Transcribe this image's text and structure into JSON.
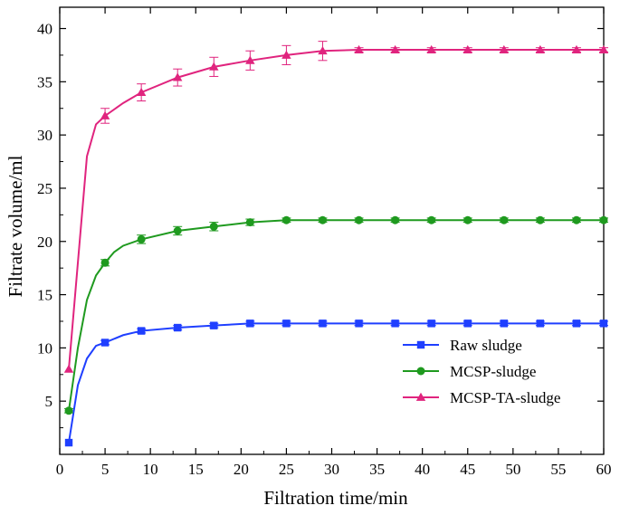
{
  "chart_data": {
    "type": "line",
    "title": "",
    "xlabel": "Filtration time/min",
    "ylabel": "Filtrate volume/ml",
    "xlim": [
      0,
      60
    ],
    "ylim": [
      0,
      42
    ],
    "xticks": [
      0,
      5,
      10,
      15,
      20,
      25,
      30,
      35,
      40,
      45,
      50,
      55,
      60
    ],
    "yticks": [
      5,
      10,
      15,
      20,
      25,
      30,
      35,
      40
    ],
    "grid": false,
    "legend_position": "bottom-right",
    "series": [
      {
        "name": "Raw sludge",
        "color": "#1f3fff",
        "marker": "square",
        "line_x": [
          1,
          2,
          3,
          4,
          5,
          7,
          9,
          13,
          17,
          21,
          25,
          29,
          33,
          37,
          41,
          45,
          49,
          53,
          57,
          60
        ],
        "line_y": [
          1.1,
          6.5,
          9.0,
          10.2,
          10.5,
          11.2,
          11.6,
          11.9,
          12.1,
          12.3,
          12.3,
          12.3,
          12.3,
          12.3,
          12.3,
          12.3,
          12.3,
          12.3,
          12.3,
          12.3
        ],
        "points_x": [
          1,
          5,
          9,
          13,
          17,
          21,
          25,
          29,
          33,
          37,
          41,
          45,
          49,
          53,
          57,
          60
        ],
        "points_y": [
          1.1,
          10.5,
          11.6,
          11.9,
          12.1,
          12.3,
          12.3,
          12.3,
          12.3,
          12.3,
          12.3,
          12.3,
          12.3,
          12.3,
          12.3,
          12.3
        ],
        "errors": [
          0,
          0.2,
          0.2,
          0.2,
          0.2,
          0.2,
          0.2,
          0.2,
          0.2,
          0.2,
          0.2,
          0.2,
          0.2,
          0.2,
          0.2,
          0.2
        ]
      },
      {
        "name": "MCSP-sludge",
        "color": "#1f9a1f",
        "marker": "circle",
        "line_x": [
          1,
          2,
          3,
          4,
          5,
          6,
          7,
          9,
          13,
          17,
          21,
          25,
          29,
          33,
          37,
          41,
          45,
          49,
          53,
          57,
          60
        ],
        "line_y": [
          4.1,
          10.0,
          14.5,
          16.8,
          18.0,
          19.0,
          19.6,
          20.2,
          21.0,
          21.4,
          21.8,
          22.0,
          22.0,
          22.0,
          22.0,
          22.0,
          22.0,
          22.0,
          22.0,
          22.0,
          22.0
        ],
        "points_x": [
          1,
          5,
          9,
          13,
          17,
          21,
          25,
          29,
          33,
          37,
          41,
          45,
          49,
          53,
          57,
          60
        ],
        "points_y": [
          4.1,
          18.0,
          20.2,
          21.0,
          21.4,
          21.8,
          22.0,
          22.0,
          22.0,
          22.0,
          22.0,
          22.0,
          22.0,
          22.0,
          22.0,
          22.0
        ],
        "errors": [
          0.2,
          0.3,
          0.4,
          0.4,
          0.4,
          0.3,
          0.2,
          0.2,
          0.2,
          0.2,
          0.2,
          0.2,
          0.2,
          0.2,
          0.2,
          0.2
        ]
      },
      {
        "name": "MCSP-TA-sludge",
        "color": "#e0247e",
        "marker": "triangle",
        "line_x": [
          1,
          2,
          3,
          4,
          5,
          7,
          9,
          13,
          17,
          21,
          25,
          29,
          33,
          37,
          41,
          45,
          49,
          53,
          57,
          60
        ],
        "line_y": [
          8.0,
          18.0,
          28.0,
          31.0,
          31.8,
          33.0,
          34.0,
          35.4,
          36.4,
          37.0,
          37.5,
          37.9,
          38.0,
          38.0,
          38.0,
          38.0,
          38.0,
          38.0,
          38.0,
          38.0
        ],
        "points_x": [
          1,
          5,
          9,
          13,
          17,
          21,
          25,
          29,
          33,
          37,
          41,
          45,
          49,
          53,
          57,
          60
        ],
        "points_y": [
          8.0,
          31.8,
          34.0,
          35.4,
          36.4,
          37.0,
          37.5,
          37.9,
          38.0,
          38.0,
          38.0,
          38.0,
          38.0,
          38.0,
          38.0,
          38.0
        ],
        "errors": [
          0,
          0.7,
          0.8,
          0.8,
          0.9,
          0.9,
          0.9,
          0.9,
          0.2,
          0.2,
          0.2,
          0.2,
          0.2,
          0.2,
          0.2,
          0.2
        ]
      }
    ]
  }
}
